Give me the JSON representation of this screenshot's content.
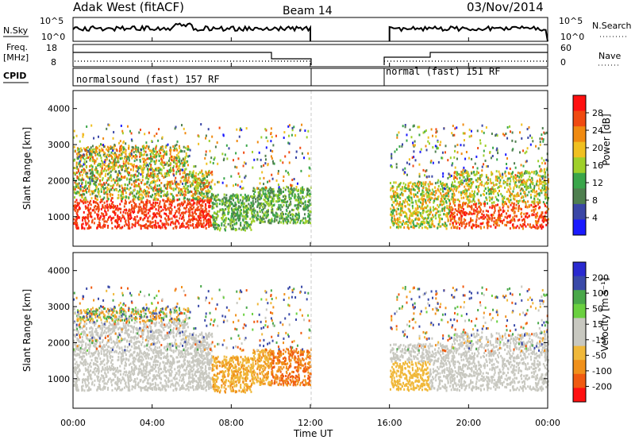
{
  "header": {
    "radar": "Adak West (fitACF)",
    "beam": "Beam 14",
    "date": "03/Nov/2014"
  },
  "side_labels": {
    "nsky": "N.Sky",
    "nsearch": "N.Search",
    "freq": "Freq.",
    "freq_unit": "[MHz]",
    "nave": "Nave",
    "cpid": "CPID"
  },
  "panels": {
    "noise_ticks_left": [
      "10^5",
      "10^0"
    ],
    "noise_ticks_right": [
      "10^5",
      "10^0"
    ],
    "freq_ticks_left": [
      "18",
      "8"
    ],
    "nave_ticks_right": [
      "60",
      "0"
    ],
    "cpid_labels": [
      "normalsound (fast) 157 RF",
      "normal (fast) 151 RF"
    ]
  },
  "colors": {
    "power_scale": [
      "#1a1aff",
      "#3a46a6",
      "#4f7f4f",
      "#3aa64a",
      "#9fd02a",
      "#f0c020",
      "#f08a10",
      "#f04a10",
      "#ff1010"
    ],
    "velocity_scale": [
      "#ff1010",
      "#f05a10",
      "#f0901a",
      "#f0b83a",
      "#c8c8c0",
      "#c8c8c0",
      "#6ad040",
      "#4aa84a",
      "#3a4aa8",
      "#2a2ad0"
    ]
  },
  "chart_data": [
    {
      "type": "heatmap",
      "name": "Power",
      "xlabel": "",
      "ylabel": "Slant Range [km]",
      "ylim": [
        180,
        4500
      ],
      "xlim_hours": [
        0,
        24
      ],
      "yticks": [
        "1000",
        "2000",
        "3000",
        "4000"
      ],
      "colorbar": {
        "label": "Power [dB]",
        "ticks": [
          "28",
          "24",
          "20",
          "16",
          "12",
          "8",
          "4"
        ],
        "range": [
          0,
          32
        ]
      },
      "data_gap_hours": [
        12,
        16
      ]
    },
    {
      "type": "heatmap",
      "name": "Velocity",
      "xlabel": "Time UT",
      "ylabel": "Slant Range [km]",
      "ylim": [
        180,
        4500
      ],
      "xlim_hours": [
        0,
        24
      ],
      "yticks": [
        "1000",
        "2000",
        "3000",
        "4000"
      ],
      "xticks": [
        "00:00",
        "04:00",
        "08:00",
        "12:00",
        "16:00",
        "20:00",
        "00:00"
      ],
      "colorbar": {
        "label": "Velocity [m s⁻¹]",
        "ticks": [
          "200",
          "100",
          "50",
          "15",
          "-15",
          "-50",
          "-100",
          "-200"
        ],
        "range": [
          -250,
          250
        ]
      },
      "data_gap_hours": [
        12,
        16
      ]
    }
  ]
}
